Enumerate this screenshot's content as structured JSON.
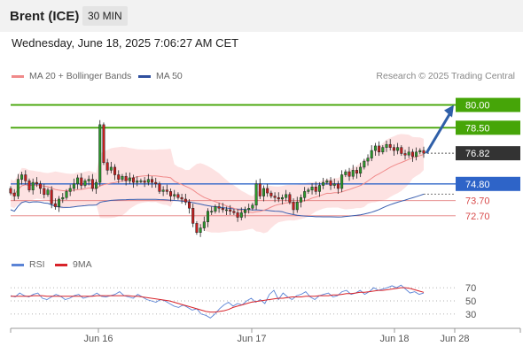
{
  "header": {
    "title": "Brent (ICE)",
    "interval": "30 MIN",
    "datetime": "Wednesday, June 18, 2025 7:06:27 AM CET"
  },
  "legend": {
    "ma20_label": "MA 20 + Bollinger Bands",
    "ma50_label": "MA 50",
    "copyright": "Research © 2025 Trading Central",
    "rsi_label": "RSI",
    "rsi_ma_label": "9MA"
  },
  "colors": {
    "resistance": "#46a508",
    "support_blue": "#2e64c8",
    "support_red": "#d84a4a",
    "last_price": "#333333",
    "candle_up": "#2a9a2a",
    "candle_down": "#c81e1e",
    "bollinger_fill": "#fde2e2",
    "ma20": "#f08a8a",
    "ma50": "#3a5fb0",
    "rsi": "#5b84d6",
    "rsi_ma": "#d8232a",
    "arrow": "#2f5fa8"
  },
  "chart_data": [
    {
      "type": "candlestick",
      "x_tick_labels": [
        "Jun 16",
        "Jun 17",
        "Jun 18",
        "Jun 28"
      ],
      "ylim": [
        70.3,
        81.2
      ],
      "levels": [
        {
          "value": "80.00",
          "kind": "resistance"
        },
        {
          "value": "78.50",
          "kind": "resistance"
        },
        {
          "value": "76.82",
          "kind": "last"
        },
        {
          "value": "74.80",
          "kind": "support_blue"
        },
        {
          "value": "73.70",
          "kind": "support_red"
        },
        {
          "value": "72.70",
          "kind": "support_red"
        }
      ],
      "arrow": {
        "from": 76.82,
        "to": 80.0
      },
      "close": [
        74.2,
        74.0,
        75.1,
        75.4,
        75.0,
        74.4,
        74.9,
        74.8,
        74.5,
        74.1,
        74.4,
        73.5,
        73.3,
        73.8,
        73.9,
        74.3,
        74.5,
        74.8,
        75.2,
        74.7,
        75.0,
        75.1,
        74.5,
        74.9,
        78.7,
        76.2,
        75.7,
        75.9,
        75.4,
        75.1,
        75.3,
        75.0,
        75.2,
        74.9,
        75.0,
        75.0,
        74.9,
        75.1,
        74.9,
        74.8,
        74.3,
        74.4,
        74.3,
        74.0,
        74.1,
        73.9,
        73.8,
        73.6,
        73.2,
        72.2,
        71.6,
        71.9,
        72.3,
        73.0,
        73.0,
        73.3,
        73.2,
        73.1,
        73.1,
        73.0,
        72.9,
        72.6,
        72.9,
        73.1,
        73.2,
        73.4,
        74.8,
        74.0,
        74.5,
        74.2,
        74.0,
        73.9,
        73.8,
        73.9,
        74.1,
        73.6,
        73.1,
        73.6,
        73.9,
        74.3,
        74.4,
        74.6,
        74.3,
        74.7,
        74.9,
        75.0,
        74.7,
        74.8,
        74.5,
        75.4,
        75.6,
        75.3,
        75.7,
        75.5,
        75.9,
        76.3,
        76.5,
        77.0,
        77.3,
        76.9,
        77.2,
        77.4,
        77.2,
        77.0,
        77.2,
        76.8,
        76.7,
        76.9,
        76.6,
        76.9,
        77.0,
        76.82
      ]
    },
    {
      "type": "line",
      "title": "RSI",
      "y_tick_labels": [
        "70",
        "50",
        "30"
      ],
      "ylim": [
        15,
        85
      ],
      "rsi": [
        58,
        56,
        62,
        58,
        56,
        60,
        62,
        54,
        52,
        56,
        60,
        57,
        52,
        54,
        58,
        60,
        54,
        56,
        58,
        62,
        57,
        56,
        58,
        60,
        64,
        58,
        56,
        54,
        60,
        56,
        52,
        50,
        48,
        52,
        50,
        46,
        42,
        40,
        44,
        40,
        36,
        38,
        30,
        28,
        24,
        30,
        38,
        44,
        48,
        42,
        46,
        44,
        50,
        54,
        48,
        52,
        46,
        60,
        66,
        52,
        62,
        56,
        52,
        58,
        60,
        64,
        56,
        52,
        58,
        60,
        62,
        56,
        58,
        64,
        66,
        60,
        62,
        66,
        60,
        64,
        70,
        66,
        68,
        70,
        73,
        70,
        74,
        68,
        62,
        64,
        60,
        62
      ],
      "rsi_ma": [
        57,
        57,
        57,
        57,
        57,
        58,
        58,
        58,
        57,
        57,
        57,
        57,
        57,
        57,
        57,
        57,
        57,
        57,
        57,
        58,
        58,
        58,
        58,
        58,
        58,
        58,
        58,
        57,
        57,
        56,
        55,
        54,
        53,
        52,
        51,
        50,
        48,
        46,
        44,
        42,
        40,
        38,
        36,
        34,
        33,
        33,
        34,
        35,
        37,
        40,
        42,
        44,
        46,
        48,
        49,
        50,
        51,
        52,
        53,
        54,
        54,
        55,
        56,
        56,
        56,
        57,
        57,
        57,
        58,
        58,
        58,
        59,
        59,
        60,
        61,
        61,
        62,
        63,
        63,
        64,
        65,
        66,
        66,
        67,
        68,
        69,
        70,
        70,
        69,
        67,
        65,
        63
      ]
    }
  ]
}
